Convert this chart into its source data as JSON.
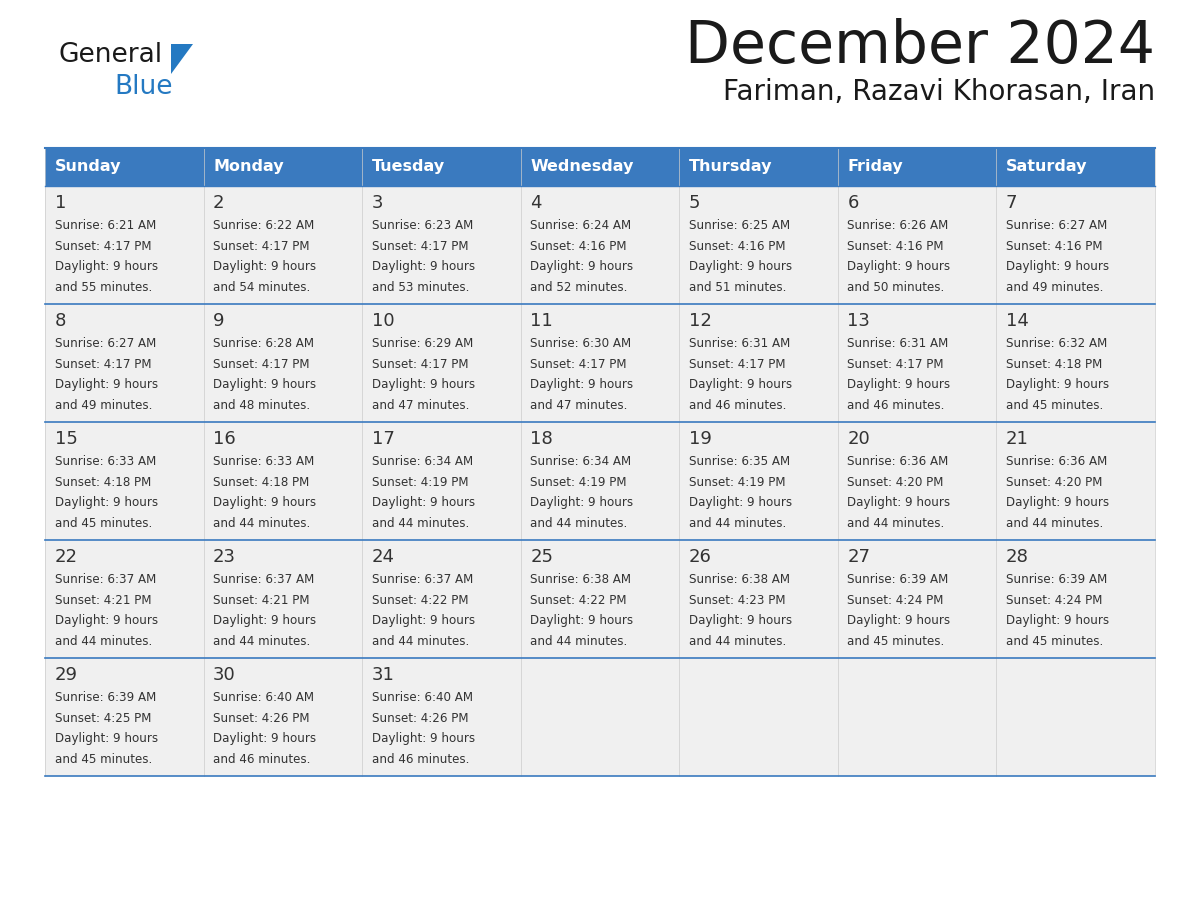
{
  "title": "December 2024",
  "subtitle": "Fariman, Razavi Khorasan, Iran",
  "header_color": "#3a7abf",
  "header_text_color": "#ffffff",
  "cell_bg_color": "#f0f0f0",
  "text_color": "#333333",
  "border_color": "#3a7abf",
  "row_border_color": "#3a7abf",
  "days_of_week": [
    "Sunday",
    "Monday",
    "Tuesday",
    "Wednesday",
    "Thursday",
    "Friday",
    "Saturday"
  ],
  "calendar_data": [
    [
      {
        "day": 1,
        "sunrise": "6:21 AM",
        "sunset": "4:17 PM",
        "daylight_suffix": "55 minutes."
      },
      {
        "day": 2,
        "sunrise": "6:22 AM",
        "sunset": "4:17 PM",
        "daylight_suffix": "54 minutes."
      },
      {
        "day": 3,
        "sunrise": "6:23 AM",
        "sunset": "4:17 PM",
        "daylight_suffix": "53 minutes."
      },
      {
        "day": 4,
        "sunrise": "6:24 AM",
        "sunset": "4:16 PM",
        "daylight_suffix": "52 minutes."
      },
      {
        "day": 5,
        "sunrise": "6:25 AM",
        "sunset": "4:16 PM",
        "daylight_suffix": "51 minutes."
      },
      {
        "day": 6,
        "sunrise": "6:26 AM",
        "sunset": "4:16 PM",
        "daylight_suffix": "50 minutes."
      },
      {
        "day": 7,
        "sunrise": "6:27 AM",
        "sunset": "4:16 PM",
        "daylight_suffix": "49 minutes."
      }
    ],
    [
      {
        "day": 8,
        "sunrise": "6:27 AM",
        "sunset": "4:17 PM",
        "daylight_suffix": "49 minutes."
      },
      {
        "day": 9,
        "sunrise": "6:28 AM",
        "sunset": "4:17 PM",
        "daylight_suffix": "48 minutes."
      },
      {
        "day": 10,
        "sunrise": "6:29 AM",
        "sunset": "4:17 PM",
        "daylight_suffix": "47 minutes."
      },
      {
        "day": 11,
        "sunrise": "6:30 AM",
        "sunset": "4:17 PM",
        "daylight_suffix": "47 minutes."
      },
      {
        "day": 12,
        "sunrise": "6:31 AM",
        "sunset": "4:17 PM",
        "daylight_suffix": "46 minutes."
      },
      {
        "day": 13,
        "sunrise": "6:31 AM",
        "sunset": "4:17 PM",
        "daylight_suffix": "46 minutes."
      },
      {
        "day": 14,
        "sunrise": "6:32 AM",
        "sunset": "4:18 PM",
        "daylight_suffix": "45 minutes."
      }
    ],
    [
      {
        "day": 15,
        "sunrise": "6:33 AM",
        "sunset": "4:18 PM",
        "daylight_suffix": "45 minutes."
      },
      {
        "day": 16,
        "sunrise": "6:33 AM",
        "sunset": "4:18 PM",
        "daylight_suffix": "44 minutes."
      },
      {
        "day": 17,
        "sunrise": "6:34 AM",
        "sunset": "4:19 PM",
        "daylight_suffix": "44 minutes."
      },
      {
        "day": 18,
        "sunrise": "6:34 AM",
        "sunset": "4:19 PM",
        "daylight_suffix": "44 minutes."
      },
      {
        "day": 19,
        "sunrise": "6:35 AM",
        "sunset": "4:19 PM",
        "daylight_suffix": "44 minutes."
      },
      {
        "day": 20,
        "sunrise": "6:36 AM",
        "sunset": "4:20 PM",
        "daylight_suffix": "44 minutes."
      },
      {
        "day": 21,
        "sunrise": "6:36 AM",
        "sunset": "4:20 PM",
        "daylight_suffix": "44 minutes."
      }
    ],
    [
      {
        "day": 22,
        "sunrise": "6:37 AM",
        "sunset": "4:21 PM",
        "daylight_suffix": "44 minutes."
      },
      {
        "day": 23,
        "sunrise": "6:37 AM",
        "sunset": "4:21 PM",
        "daylight_suffix": "44 minutes."
      },
      {
        "day": 24,
        "sunrise": "6:37 AM",
        "sunset": "4:22 PM",
        "daylight_suffix": "44 minutes."
      },
      {
        "day": 25,
        "sunrise": "6:38 AM",
        "sunset": "4:22 PM",
        "daylight_suffix": "44 minutes."
      },
      {
        "day": 26,
        "sunrise": "6:38 AM",
        "sunset": "4:23 PM",
        "daylight_suffix": "44 minutes."
      },
      {
        "day": 27,
        "sunrise": "6:39 AM",
        "sunset": "4:24 PM",
        "daylight_suffix": "45 minutes."
      },
      {
        "day": 28,
        "sunrise": "6:39 AM",
        "sunset": "4:24 PM",
        "daylight_suffix": "45 minutes."
      }
    ],
    [
      {
        "day": 29,
        "sunrise": "6:39 AM",
        "sunset": "4:25 PM",
        "daylight_suffix": "45 minutes."
      },
      {
        "day": 30,
        "sunrise": "6:40 AM",
        "sunset": "4:26 PM",
        "daylight_suffix": "46 minutes."
      },
      {
        "day": 31,
        "sunrise": "6:40 AM",
        "sunset": "4:26 PM",
        "daylight_suffix": "46 minutes."
      },
      null,
      null,
      null,
      null
    ]
  ],
  "logo_color_general": "#1a1a1a",
  "logo_color_blue": "#2479c2",
  "logo_triangle_color": "#2479c2",
  "figsize": [
    11.88,
    9.18
  ],
  "dpi": 100
}
